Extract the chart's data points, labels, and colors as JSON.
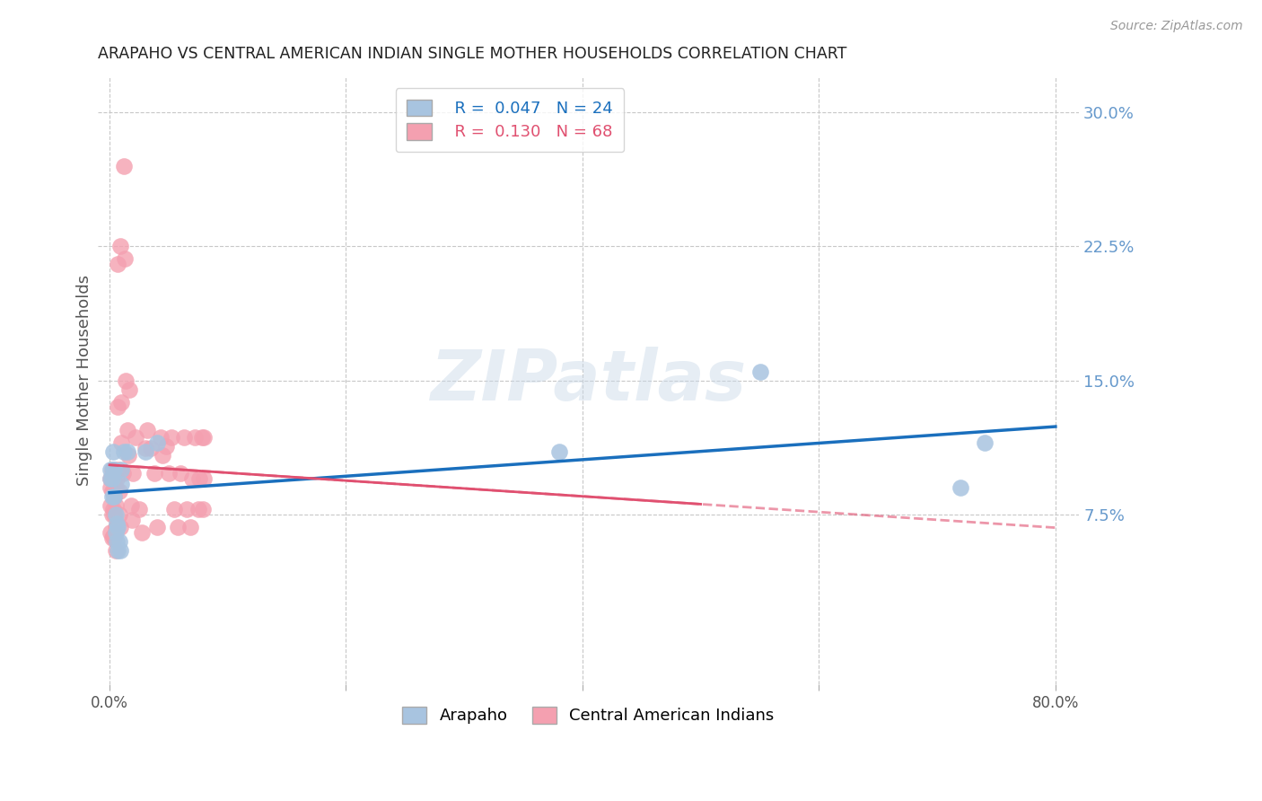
{
  "title": "ARAPAHO VS CENTRAL AMERICAN INDIAN SINGLE MOTHER HOUSEHOLDS CORRELATION CHART",
  "source": "Source: ZipAtlas.com",
  "ylabel": "Single Mother Households",
  "arapaho_color": "#a8c4e0",
  "central_color": "#f4a0b0",
  "arapaho_line_color": "#1a6fbd",
  "central_line_color": "#e05070",
  "background_color": "#ffffff",
  "grid_color": "#c8c8c8",
  "watermark": "ZIPatlas",
  "arapaho_x": [
    0.001,
    0.001,
    0.002,
    0.002,
    0.003,
    0.003,
    0.004,
    0.004,
    0.005,
    0.005,
    0.006,
    0.006,
    0.007,
    0.007,
    0.008,
    0.009,
    0.01,
    0.01,
    0.012,
    0.015,
    0.03,
    0.04,
    0.38,
    0.55,
    0.72,
    0.74
  ],
  "arapaho_y": [
    0.1,
    0.095,
    0.095,
    0.085,
    0.11,
    0.1,
    0.1,
    0.085,
    0.075,
    0.065,
    0.07,
    0.06,
    0.068,
    0.055,
    0.06,
    0.055,
    0.1,
    0.092,
    0.11,
    0.11,
    0.11,
    0.115,
    0.11,
    0.155,
    0.09,
    0.115
  ],
  "central_x": [
    0.001,
    0.001,
    0.001,
    0.001,
    0.002,
    0.002,
    0.002,
    0.002,
    0.003,
    0.003,
    0.003,
    0.003,
    0.004,
    0.004,
    0.004,
    0.004,
    0.005,
    0.005,
    0.005,
    0.005,
    0.006,
    0.006,
    0.007,
    0.007,
    0.007,
    0.008,
    0.008,
    0.009,
    0.009,
    0.01,
    0.01,
    0.011,
    0.012,
    0.013,
    0.014,
    0.015,
    0.016,
    0.017,
    0.018,
    0.019,
    0.02,
    0.022,
    0.025,
    0.027,
    0.03,
    0.032,
    0.035,
    0.038,
    0.04,
    0.043,
    0.045,
    0.048,
    0.05,
    0.052,
    0.055,
    0.058,
    0.06,
    0.063,
    0.065,
    0.068,
    0.07,
    0.072,
    0.075,
    0.076,
    0.078,
    0.079,
    0.08,
    0.08
  ],
  "central_y": [
    0.095,
    0.09,
    0.08,
    0.065,
    0.1,
    0.088,
    0.075,
    0.062,
    0.098,
    0.088,
    0.078,
    0.063,
    0.095,
    0.085,
    0.075,
    0.062,
    0.09,
    0.08,
    0.068,
    0.055,
    0.095,
    0.068,
    0.1,
    0.135,
    0.215,
    0.088,
    0.075,
    0.225,
    0.068,
    0.138,
    0.115,
    0.098,
    0.27,
    0.218,
    0.15,
    0.122,
    0.108,
    0.145,
    0.08,
    0.072,
    0.098,
    0.118,
    0.078,
    0.065,
    0.112,
    0.122,
    0.112,
    0.098,
    0.068,
    0.118,
    0.108,
    0.113,
    0.098,
    0.118,
    0.078,
    0.068,
    0.098,
    0.118,
    0.078,
    0.068,
    0.095,
    0.118,
    0.078,
    0.095,
    0.118,
    0.078,
    0.095,
    0.118
  ],
  "yticks_right": [
    0.075,
    0.15,
    0.225,
    0.3
  ],
  "ytick_labels_right": [
    "7.5%",
    "15.0%",
    "22.5%",
    "30.0%"
  ],
  "xticks": [
    0.0,
    0.2,
    0.4,
    0.6,
    0.8
  ],
  "xtick_labels": [
    "0.0%",
    "",
    "",
    "",
    "80.0%"
  ]
}
